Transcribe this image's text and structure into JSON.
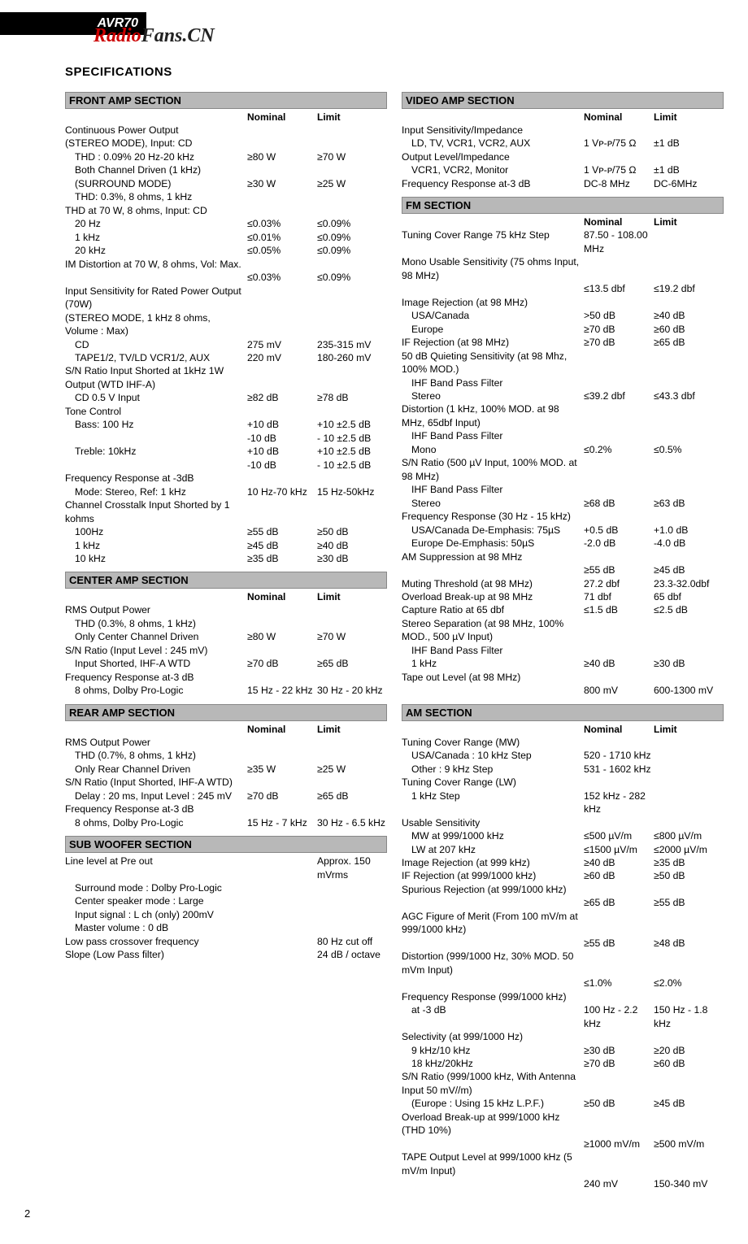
{
  "header": {
    "model": "AVR70",
    "watermark_a": "Radio",
    "watermark_b": "Fans.CN"
  },
  "title": "SPECIFICATIONS",
  "colheads": {
    "nominal": "Nominal",
    "limit": "Limit"
  },
  "page_number": "2",
  "front_amp": {
    "heading": "FRONT AMP SECTION",
    "rows": [
      {
        "l": "Continuous Power Output"
      },
      {
        "l": "(STEREO MODE), Input: CD"
      },
      {
        "l": "THD :  0.09% 20 Hz-20 kHz",
        "n": "≥80 W",
        "m": "≥70 W",
        "i": 1
      },
      {
        "l": "Both Channel Driven (1 kHz)",
        "i": 1
      },
      {
        "l": "(SURROUND MODE)",
        "n": "≥30 W",
        "m": "≥25 W",
        "i": 1
      },
      {
        "l": "THD: 0.3%, 8 ohms, 1 kHz",
        "i": 1
      },
      {
        "l": "THD at 70 W, 8 ohms, Input: CD"
      },
      {
        "l": "20 Hz",
        "n": "≤0.03%",
        "m": "≤0.09%",
        "i": 1
      },
      {
        "l": "1 kHz",
        "n": "≤0.01%",
        "m": "≤0.09%",
        "i": 1
      },
      {
        "l": "20 kHz",
        "n": "≤0.05%",
        "m": "≤0.09%",
        "i": 1
      },
      {
        "l": "IM Distortion at 70 W, 8 ohms, Vol: Max."
      },
      {
        "l": "",
        "n": "≤0.03%",
        "m": "≤0.09%"
      },
      {
        "l": "Input Sensitivity for Rated Power Output (70W)"
      },
      {
        "l": "(STEREO MODE, 1 kHz 8 ohms, Volume : Max)"
      },
      {
        "l": "CD",
        "n": "275 mV",
        "m": "235-315 mV",
        "i": 1
      },
      {
        "l": "TAPE1/2, TV/LD VCR1/2, AUX",
        "n": "220 mV",
        "m": "180-260 mV",
        "i": 1
      },
      {
        "l": "S/N Ratio Input Shorted at 1kHz 1W Output (WTD IHF-A)"
      },
      {
        "l": "CD 0.5 V Input",
        "n": "≥82 dB",
        "m": "≥78 dB",
        "i": 1
      },
      {
        "l": "Tone Control"
      },
      {
        "l": "Bass: 100 Hz",
        "n": "+10 dB",
        "m": "+10 ±2.5 dB",
        "i": 1
      },
      {
        "l": "",
        "n": "-10 dB",
        "m": "- 10 ±2.5 dB"
      },
      {
        "l": "Treble: 10kHz",
        "n": "+10 dB",
        "m": "+10 ±2.5 dB",
        "i": 1
      },
      {
        "l": "",
        "n": "-10 dB",
        "m": "- 10 ±2.5 dB"
      },
      {
        "l": "Frequency Response at -3dB"
      },
      {
        "l": "Mode: Stereo, Ref: 1 kHz",
        "n": "10 Hz-70 kHz",
        "m": "15 Hz-50kHz",
        "i": 1
      },
      {
        "l": "Channel Crosstalk Input Shorted by 1 kohms"
      },
      {
        "l": "100Hz",
        "n": "≥55 dB",
        "m": "≥50 dB",
        "i": 1
      },
      {
        "l": "1 kHz",
        "n": "≥45 dB",
        "m": "≥40 dB",
        "i": 1
      },
      {
        "l": "10 kHz",
        "n": "≥35 dB",
        "m": "≥30 dB",
        "i": 1
      }
    ]
  },
  "center_amp": {
    "heading": "CENTER AMP SECTION",
    "rows": [
      {
        "l": "RMS Output Power"
      },
      {
        "l": "THD (0.3%, 8 ohms, 1 kHz)",
        "i": 1
      },
      {
        "l": "Only Center Channel Driven",
        "n": "≥80 W",
        "m": "≥70 W",
        "i": 1
      },
      {
        "l": "S/N Ratio (Input Level : 245 mV)"
      },
      {
        "l": "Input Shorted, IHF-A WTD",
        "n": "≥70 dB",
        "m": "≥65 dB",
        "i": 1
      },
      {
        "l": "Frequency Response at-3 dB"
      },
      {
        "l": "8 ohms, Dolby Pro-Logic",
        "n": "15 Hz - 22 kHz",
        "m": "30 Hz - 20 kHz",
        "i": 1
      }
    ]
  },
  "rear_amp": {
    "heading": "REAR AMP SECTION",
    "rows": [
      {
        "l": "RMS Output Power"
      },
      {
        "l": "THD (0.7%, 8 ohms, 1 kHz)",
        "i": 1
      },
      {
        "l": "Only Rear Channel Driven",
        "n": "≥35 W",
        "m": "≥25 W",
        "i": 1
      },
      {
        "l": "S/N Ratio (Input Shorted, IHF-A WTD)"
      },
      {
        "l": "Delay : 20 ms, Input Level : 245 mV",
        "n": "≥70 dB",
        "m": "≥65 dB",
        "i": 1
      },
      {
        "l": "Frequency Response at-3 dB"
      },
      {
        "l": "8 ohms, Dolby Pro-Logic",
        "n": "15 Hz - 7 kHz",
        "m": "30 Hz - 6.5 kHz",
        "i": 1
      }
    ]
  },
  "sub_woofer": {
    "heading": "SUB WOOFER SECTION",
    "rows": [
      {
        "l": " "
      },
      {
        "l": "Line level at Pre out",
        "n": "",
        "m": "Approx. 150 mVrms"
      },
      {
        "l": "Surround mode : Dolby Pro-Logic",
        "i": 1
      },
      {
        "l": "Center speaker mode : Large",
        "i": 1
      },
      {
        "l": "Input signal : L ch (only) 200mV",
        "i": 1
      },
      {
        "l": "Master volume : 0 dB",
        "i": 1
      },
      {
        "l": " "
      },
      {
        "l": "Low pass crossover frequency",
        "n": "",
        "m": "80 Hz cut off"
      },
      {
        "l": " "
      },
      {
        "l": "Slope (Low Pass filter)",
        "n": "",
        "m": "24 dB / octave"
      }
    ]
  },
  "video_amp": {
    "heading": "VIDEO AMP SECTION",
    "rows": [
      {
        "l": "Input Sensitivity/Impedance"
      },
      {
        "l": "LD, TV, VCR1, VCR2, AUX",
        "n": "1 Vᴘ-ᴘ/75 Ω",
        "m": "±1 dB",
        "i": 1
      },
      {
        "l": "Output Level/Impedance"
      },
      {
        "l": "VCR1, VCR2, Monitor",
        "n": "1 Vᴘ-ᴘ/75 Ω",
        "m": "±1 dB",
        "i": 1
      },
      {
        "l": "Frequency Response at-3 dB",
        "n": "DC-8 MHz",
        "m": "DC-6MHz"
      }
    ]
  },
  "fm": {
    "heading": "FM SECTION",
    "rows": [
      {
        "l": "Tuning Cover Range 75 kHz Step",
        "n": "87.50 - 108.00 MHz",
        "m": ""
      },
      {
        "l": "Mono Usable Sensitivity (75 ohms Input, 98 MHz)"
      },
      {
        "l": "",
        "n": "≤13.5 dbf",
        "m": "≤19.2 dbf"
      },
      {
        "l": "Image Rejection (at 98 MHz)"
      },
      {
        "l": "USA/Canada",
        "n": ">50 dB",
        "m": "≥40 dB",
        "i": 1
      },
      {
        "l": "Europe",
        "n": "≥70 dB",
        "m": "≥60 dB",
        "i": 1
      },
      {
        "l": "IF Rejection (at 98 MHz)",
        "n": "≥70 dB",
        "m": "≥65 dB"
      },
      {
        "l": "50 dB Quieting Sensitivity (at 98 Mhz, 100% MOD.)"
      },
      {
        "l": "IHF Band Pass Filter",
        "i": 1
      },
      {
        "l": "Stereo",
        "n": "≤39.2 dbf",
        "m": "≤43.3 dbf",
        "i": 1
      },
      {
        "l": "Distortion (1 kHz, 100% MOD. at 98 MHz, 65dbf Input)"
      },
      {
        "l": "IHF Band Pass Filter",
        "i": 1
      },
      {
        "l": "Mono",
        "n": "≤0.2%",
        "m": "≤0.5%",
        "i": 1
      },
      {
        "l": "S/N Ratio (500 µV Input, 100% MOD. at 98 MHz)"
      },
      {
        "l": "IHF Band Pass Filter",
        "i": 1
      },
      {
        "l": "Stereo",
        "n": "≥68 dB",
        "m": "≥63 dB",
        "i": 1
      },
      {
        "l": "Frequency Response (30 Hz - 15 kHz)"
      },
      {
        "l": "USA/Canada  De-Emphasis: 75µS",
        "n": "+0.5 dB",
        "m": "+1.0 dB",
        "i": 1
      },
      {
        "l": "Europe  De-Emphasis: 50µS",
        "n": "-2.0 dB",
        "m": "-4.0 dB",
        "i": 1
      },
      {
        "l": "AM Suppression at 98 MHz"
      },
      {
        "l": "",
        "n": "≥55 dB",
        "m": "≥45 dB"
      },
      {
        "l": "Muting Threshold (at 98 MHz)",
        "n": "27.2 dbf",
        "m": "23.3-32.0dbf"
      },
      {
        "l": "Overload Break-up at 98 MHz",
        "n": "71 dbf",
        "m": "65 dbf"
      },
      {
        "l": "Capture Ratio at 65 dbf",
        "n": "≤1.5 dB",
        "m": "≤2.5 dB"
      },
      {
        "l": "Stereo Separation (at 98 MHz, 100% MOD., 500 µV Input)"
      },
      {
        "l": "IHF Band Pass Filter",
        "i": 1
      },
      {
        "l": "1 kHz",
        "n": "≥40 dB",
        "m": "≥30 dB",
        "i": 1
      },
      {
        "l": "Tape out Level (at 98 MHz)"
      },
      {
        "l": "",
        "n": "800 mV",
        "m": "600-1300 mV"
      }
    ]
  },
  "am": {
    "heading": "AM SECTION",
    "rows": [
      {
        "l": "Tuning Cover Range (MW)"
      },
      {
        "l": "USA/Canada : 10 kHz Step",
        "n": "520 - 1710 kHz",
        "m": "",
        "i": 1
      },
      {
        "l": "Other : 9 kHz Step",
        "n": "531 - 1602 kHz",
        "m": "",
        "i": 1
      },
      {
        "l": "Tuning Cover Range (LW)"
      },
      {
        "l": "1 kHz Step",
        "n": "152 kHz - 282 kHz",
        "m": "",
        "i": 1
      },
      {
        "l": "Usable Sensitivity"
      },
      {
        "l": "MW at 999/1000 kHz",
        "n": "≤500 µV/m",
        "m": "≤800 µV/m",
        "i": 1
      },
      {
        "l": "LW at 207 kHz",
        "n": "≤1500 µV/m",
        "m": "≤2000 µV/m",
        "i": 1
      },
      {
        "l": "Image Rejection (at 999 kHz)",
        "n": "≥40 dB",
        "m": "≥35 dB"
      },
      {
        "l": "IF Rejection (at 999/1000 kHz)",
        "n": "≥60 dB",
        "m": "≥50 dB"
      },
      {
        "l": "Spurious Rejection (at 999/1000 kHz)"
      },
      {
        "l": "",
        "n": "≥65 dB",
        "m": "≥55 dB"
      },
      {
        "l": "AGC Figure of Merit (From 100 mV/m at 999/1000 kHz)"
      },
      {
        "l": "",
        "n": "≥55 dB",
        "m": "≥48 dB"
      },
      {
        "l": "Distortion (999/1000 Hz, 30% MOD. 50 mVm Input)"
      },
      {
        "l": "",
        "n": "≤1.0%",
        "m": "≤2.0%"
      },
      {
        "l": "Frequency Response (999/1000 kHz)"
      },
      {
        "l": "at -3 dB",
        "n": "100 Hz - 2.2 kHz",
        "m": "150 Hz - 1.8 kHz",
        "i": 1
      },
      {
        "l": "Selectivity (at 999/1000 Hz)"
      },
      {
        "l": "9 kHz/10 kHz",
        "n": "≥30 dB",
        "m": "≥20 dB",
        "i": 1
      },
      {
        "l": "18 kHz/20kHz",
        "n": "≥70 dB",
        "m": "≥60 dB",
        "i": 1
      },
      {
        "l": "S/N Ratio (999/1000 kHz, With Antenna Input 50 mV//m)"
      },
      {
        "l": "(Europe : Using 15 kHz L.P.F.)",
        "n": "≥50 dB",
        "m": "≥45 dB",
        "i": 1
      },
      {
        "l": "Overload Break-up at 999/1000 kHz (THD 10%)"
      },
      {
        "l": "",
        "n": "≥1000 mV/m",
        "m": "≥500 mV/m"
      },
      {
        "l": "TAPE Output Level at 999/1000 kHz (5 mV/m Input)"
      },
      {
        "l": "",
        "n": "240 mV",
        "m": "150-340 mV"
      }
    ]
  }
}
